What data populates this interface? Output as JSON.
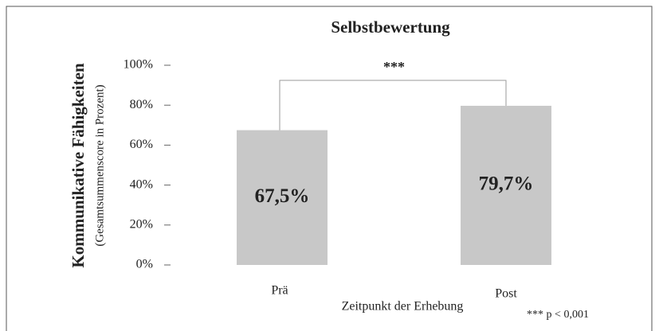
{
  "chart_data": {
    "type": "bar",
    "title": "Selbstbewertung",
    "ylabel": "Kommunikative Fähigkeiten",
    "ylabel_sub": "(Gesamtsummenscore in Prozent)",
    "xlabel": "Zeitpunkt der Erhebung",
    "categories": [
      "Prä",
      "Post"
    ],
    "values": [
      67.5,
      79.7
    ],
    "value_labels": [
      "67,5%",
      "79,7%"
    ],
    "color": "#c8c8c8",
    "ylim": [
      0,
      100
    ],
    "yticks": [
      {
        "value": 0,
        "label": "0%"
      },
      {
        "value": 20,
        "label": "20%"
      },
      {
        "value": 40,
        "label": "40%"
      },
      {
        "value": 60,
        "label": "60%"
      },
      {
        "value": 80,
        "label": "80%"
      },
      {
        "value": 100,
        "label": "100%"
      }
    ],
    "significance": "***",
    "note": "*** p < 0,001"
  }
}
